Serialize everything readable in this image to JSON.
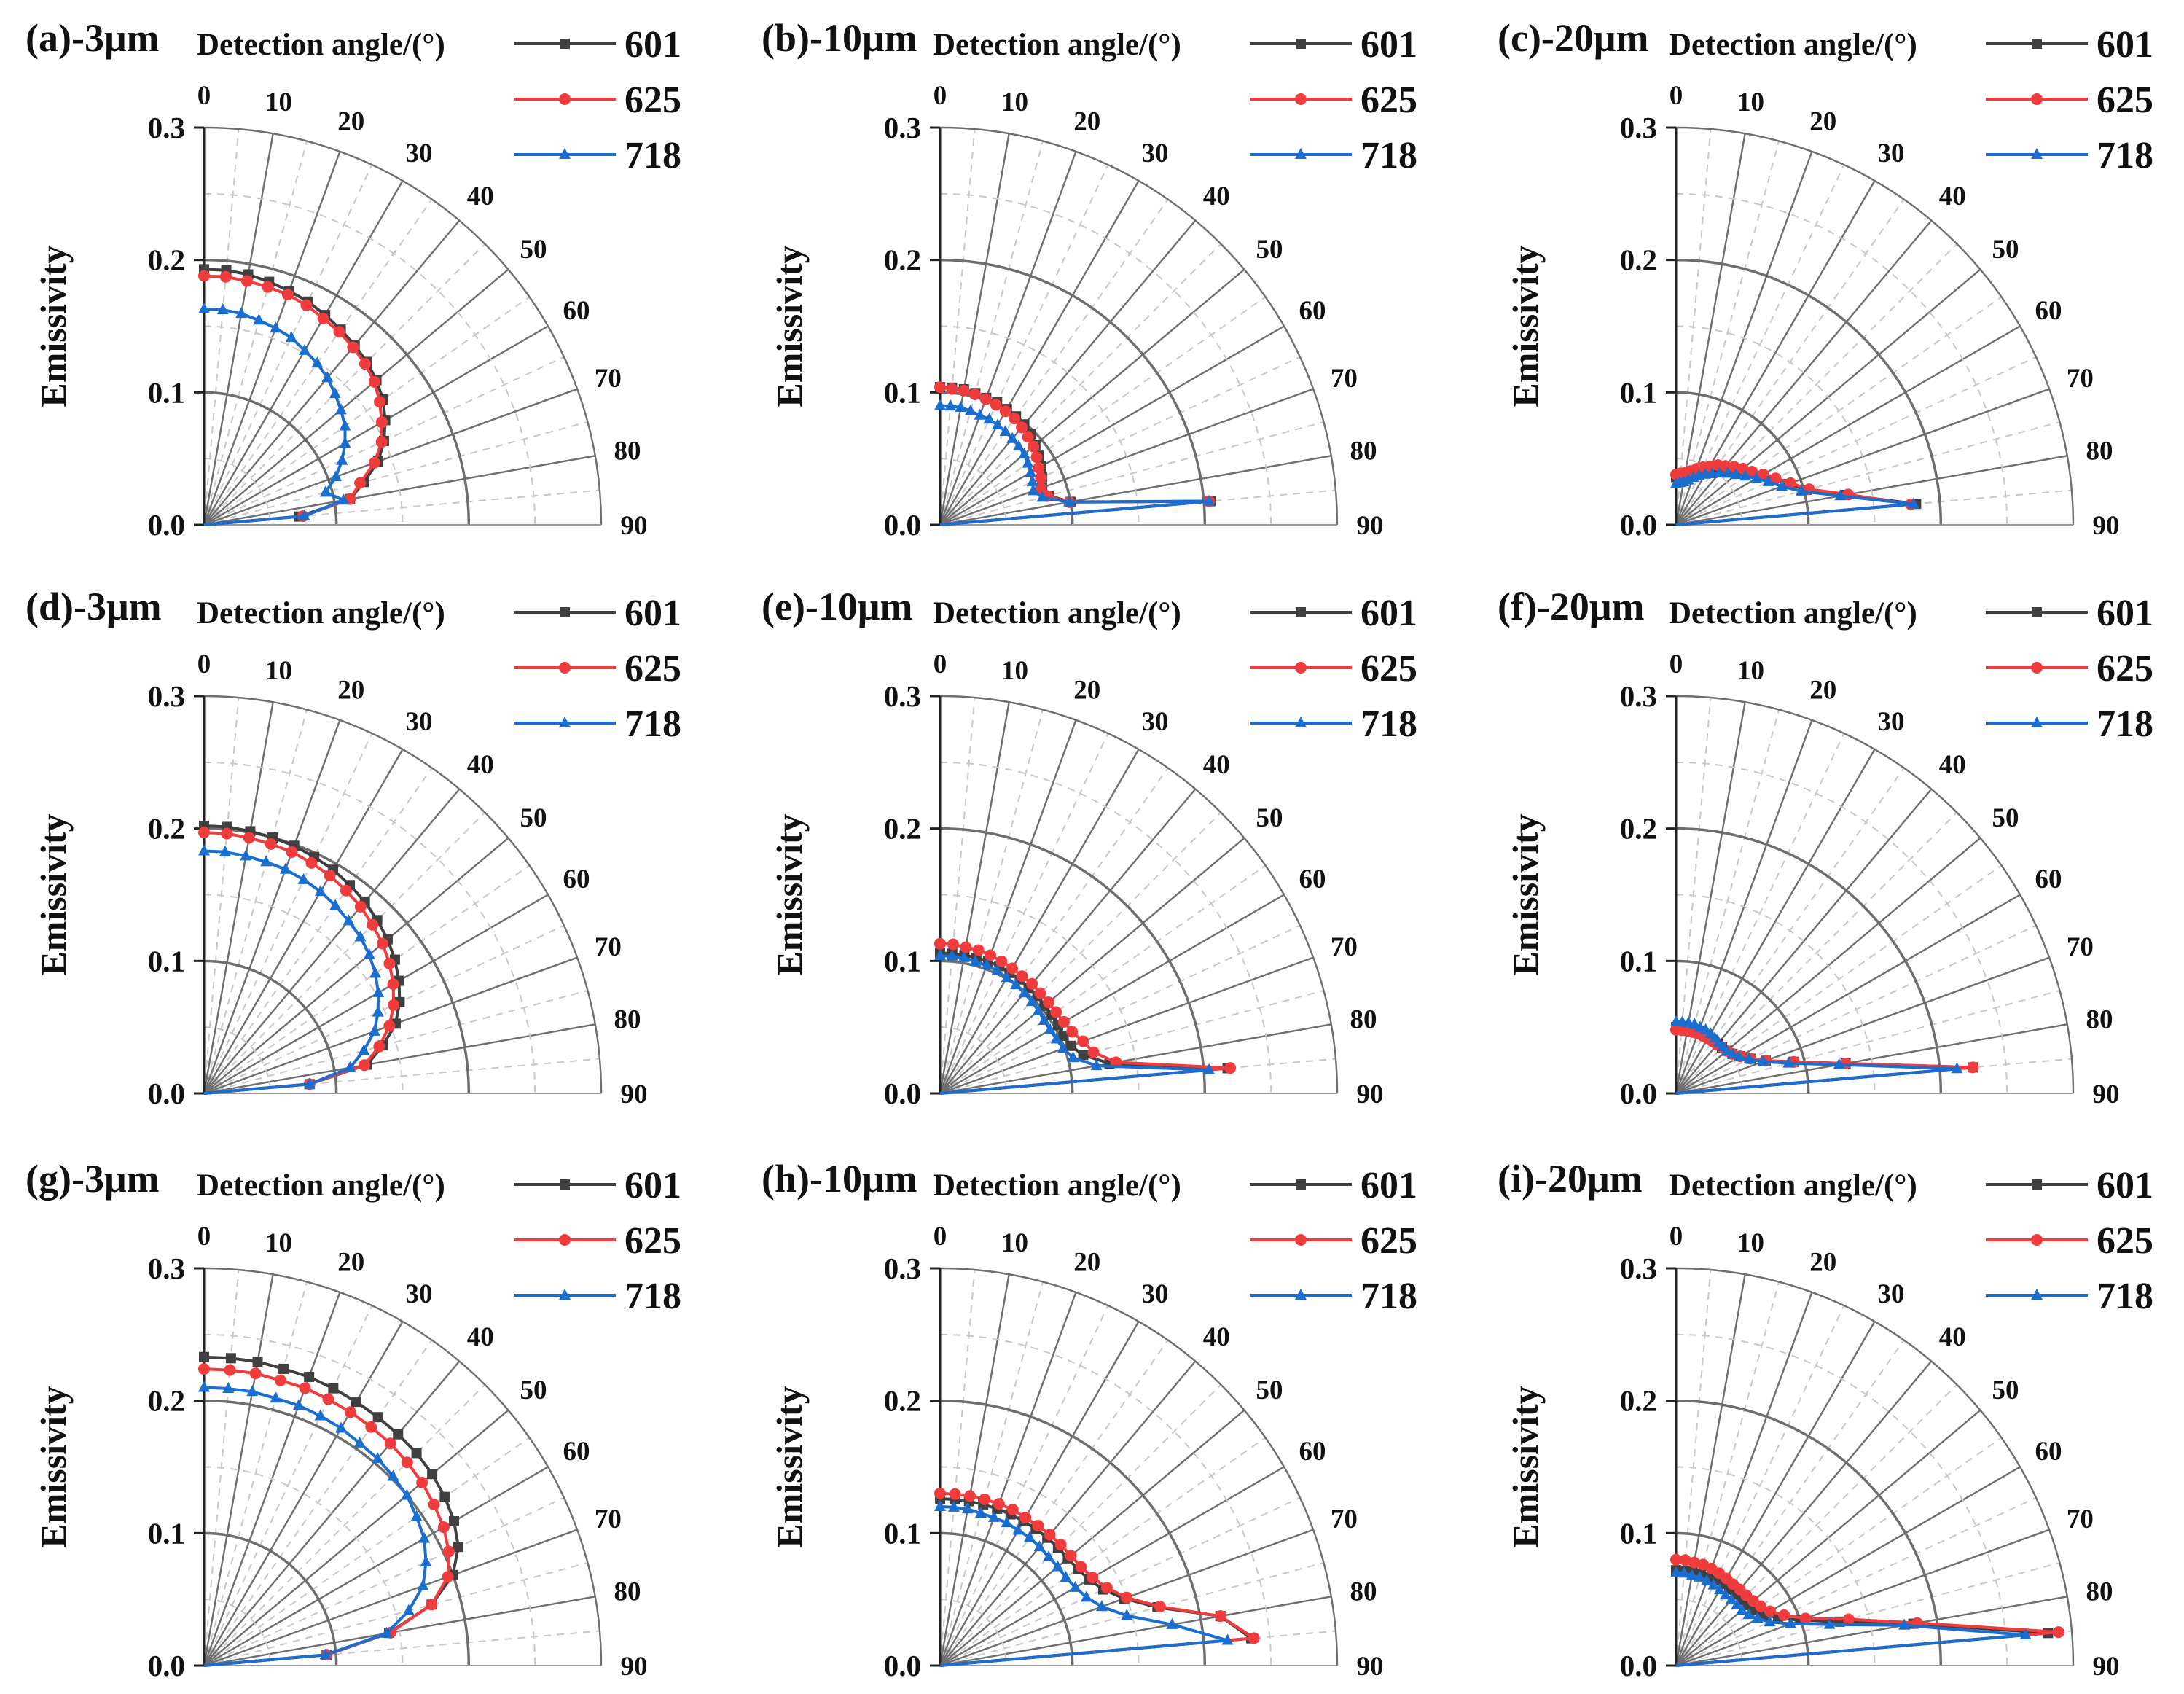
{
  "figure": {
    "y_label": "Emissivity",
    "angle_axis_title": "Detection angle/(°)",
    "radial_ticks": [
      "0.0",
      "0.1",
      "0.2",
      "0.3"
    ],
    "angle_ticks": [
      "0",
      "10",
      "20",
      "30",
      "40",
      "50",
      "60",
      "70",
      "80",
      "90"
    ],
    "legend": [
      {
        "name": "601",
        "color": "#404040",
        "marker": "square"
      },
      {
        "name": "625",
        "color": "#f03c3c",
        "marker": "circle"
      },
      {
        "name": "718",
        "color": "#1a6ed0",
        "marker": "triangle"
      }
    ]
  },
  "chart_data": [
    {
      "type": "polar-line",
      "title": "(a)-3μm",
      "xlabel": "Detection angle/(°)",
      "ylabel": "Emissivity",
      "angle_range": [
        0,
        90
      ],
      "radial_range": [
        0,
        0.3
      ],
      "angles": [
        0,
        5,
        10,
        15,
        20,
        25,
        30,
        35,
        40,
        45,
        50,
        55,
        60,
        65,
        70,
        75,
        80,
        85,
        90
      ],
      "series": [
        {
          "name": "601",
          "values": [
            0.193,
            0.193,
            0.192,
            0.19,
            0.188,
            0.186,
            0.183,
            0.18,
            0.177,
            0.174,
            0.17,
            0.165,
            0.158,
            0.15,
            0.14,
            0.125,
            0.112,
            0.072,
            0.0
          ]
        },
        {
          "name": "625",
          "values": [
            0.188,
            0.188,
            0.187,
            0.186,
            0.185,
            0.183,
            0.18,
            0.178,
            0.175,
            0.172,
            0.168,
            0.162,
            0.155,
            0.148,
            0.137,
            0.122,
            0.112,
            0.075,
            0.0
          ]
        },
        {
          "name": "718",
          "values": [
            0.163,
            0.163,
            0.162,
            0.16,
            0.158,
            0.156,
            0.152,
            0.149,
            0.145,
            0.14,
            0.135,
            0.13,
            0.123,
            0.115,
            0.106,
            0.095,
            0.107,
            0.076,
            0.0
          ]
        }
      ]
    },
    {
      "type": "polar-line",
      "title": "(b)-10μm",
      "xlabel": "Detection angle/(°)",
      "ylabel": "Emissivity",
      "angle_range": [
        0,
        90
      ],
      "radial_range": [
        0,
        0.3
      ],
      "angles": [
        0,
        5,
        10,
        15,
        20,
        25,
        30,
        35,
        40,
        45,
        50,
        55,
        60,
        65,
        70,
        75,
        80,
        85,
        90
      ],
      "series": [
        {
          "name": "601",
          "values": [
            0.104,
            0.104,
            0.104,
            0.103,
            0.102,
            0.102,
            0.101,
            0.1,
            0.099,
            0.097,
            0.094,
            0.091,
            0.088,
            0.085,
            0.082,
            0.085,
            0.1,
            0.205,
            0.0
          ]
        },
        {
          "name": "625",
          "values": [
            0.104,
            0.103,
            0.103,
            0.102,
            0.101,
            0.1,
            0.099,
            0.098,
            0.096,
            0.094,
            0.092,
            0.089,
            0.086,
            0.084,
            0.081,
            0.084,
            0.099,
            0.204,
            0.0
          ]
        },
        {
          "name": "718",
          "values": [
            0.09,
            0.09,
            0.09,
            0.089,
            0.088,
            0.088,
            0.087,
            0.086,
            0.085,
            0.084,
            0.083,
            0.081,
            0.079,
            0.077,
            0.075,
            0.08,
            0.099,
            0.204,
            0.0
          ]
        }
      ]
    },
    {
      "type": "polar-line",
      "title": "(c)-20μm",
      "xlabel": "Detection angle/(°)",
      "ylabel": "Emissivity",
      "angle_range": [
        0,
        90
      ],
      "radial_range": [
        0,
        0.3
      ],
      "angles": [
        0,
        5,
        10,
        15,
        20,
        25,
        30,
        35,
        40,
        45,
        50,
        55,
        60,
        65,
        70,
        75,
        80,
        85,
        90
      ],
      "series": [
        {
          "name": "601",
          "values": [
            0.036,
            0.037,
            0.038,
            0.04,
            0.043,
            0.046,
            0.049,
            0.053,
            0.056,
            0.06,
            0.064,
            0.068,
            0.074,
            0.081,
            0.09,
            0.102,
            0.13,
            0.182,
            0.0
          ]
        },
        {
          "name": "625",
          "values": [
            0.038,
            0.039,
            0.04,
            0.042,
            0.045,
            0.048,
            0.051,
            0.055,
            0.058,
            0.062,
            0.066,
            0.07,
            0.076,
            0.083,
            0.092,
            0.104,
            0.132,
            0.178,
            0.0
          ]
        },
        {
          "name": "718",
          "values": [
            0.031,
            0.032,
            0.033,
            0.035,
            0.038,
            0.041,
            0.044,
            0.047,
            0.051,
            0.055,
            0.059,
            0.064,
            0.07,
            0.077,
            0.085,
            0.098,
            0.126,
            0.18,
            0.0
          ]
        }
      ]
    },
    {
      "type": "polar-line",
      "title": "(d)-3μm",
      "xlabel": "Detection angle/(°)",
      "ylabel": "Emissivity",
      "angle_range": [
        0,
        90
      ],
      "radial_range": [
        0,
        0.3
      ],
      "angles": [
        0,
        5,
        10,
        15,
        20,
        25,
        30,
        35,
        40,
        45,
        50,
        55,
        60,
        65,
        70,
        75,
        80,
        85,
        90
      ],
      "series": [
        {
          "name": "601",
          "values": [
            0.202,
            0.202,
            0.201,
            0.2,
            0.199,
            0.197,
            0.195,
            0.192,
            0.189,
            0.185,
            0.181,
            0.176,
            0.17,
            0.163,
            0.154,
            0.14,
            0.125,
            0.08,
            0.0
          ]
        },
        {
          "name": "625",
          "values": [
            0.197,
            0.197,
            0.196,
            0.195,
            0.194,
            0.192,
            0.19,
            0.187,
            0.184,
            0.18,
            0.176,
            0.171,
            0.165,
            0.158,
            0.149,
            0.137,
            0.123,
            0.08,
            0.0
          ]
        },
        {
          "name": "718",
          "values": [
            0.183,
            0.183,
            0.182,
            0.181,
            0.18,
            0.178,
            0.176,
            0.173,
            0.17,
            0.167,
            0.163,
            0.158,
            0.152,
            0.145,
            0.137,
            0.125,
            0.112,
            0.08,
            0.0
          ]
        }
      ]
    },
    {
      "type": "polar-line",
      "title": "(e)-10μm",
      "xlabel": "Detection angle/(°)",
      "ylabel": "Emissivity",
      "angle_range": [
        0,
        90
      ],
      "radial_range": [
        0,
        0.3
      ],
      "angles": [
        0,
        5,
        10,
        15,
        20,
        25,
        30,
        35,
        40,
        45,
        50,
        55,
        60,
        65,
        70,
        75,
        80,
        85,
        90
      ],
      "series": [
        {
          "name": "601",
          "values": [
            0.106,
            0.106,
            0.106,
            0.106,
            0.106,
            0.106,
            0.105,
            0.105,
            0.104,
            0.104,
            0.103,
            0.103,
            0.103,
            0.103,
            0.105,
            0.112,
            0.13,
            0.218,
            0.0
          ]
        },
        {
          "name": "625",
          "values": [
            0.113,
            0.113,
            0.112,
            0.112,
            0.111,
            0.11,
            0.109,
            0.108,
            0.108,
            0.107,
            0.107,
            0.107,
            0.108,
            0.11,
            0.115,
            0.12,
            0.135,
            0.22,
            0.0
          ]
        },
        {
          "name": "718",
          "values": [
            0.104,
            0.104,
            0.104,
            0.103,
            0.103,
            0.102,
            0.101,
            0.1,
            0.099,
            0.098,
            0.097,
            0.096,
            0.096,
            0.097,
            0.099,
            0.104,
            0.12,
            0.204,
            0.0
          ]
        }
      ]
    },
    {
      "type": "polar-line",
      "title": "(f)-20μm",
      "xlabel": "Detection angle/(°)",
      "ylabel": "Emissivity",
      "angle_range": [
        0,
        90
      ],
      "radial_range": [
        0,
        0.3
      ],
      "angles": [
        0,
        5,
        10,
        15,
        20,
        25,
        30,
        35,
        40,
        45,
        50,
        55,
        60,
        65,
        70,
        75,
        80,
        85,
        90
      ],
      "series": [
        {
          "name": "601",
          "values": [
            0.05,
            0.05,
            0.05,
            0.05,
            0.05,
            0.049,
            0.049,
            0.049,
            0.049,
            0.049,
            0.05,
            0.052,
            0.056,
            0.062,
            0.072,
            0.092,
            0.13,
            0.225,
            0.0
          ]
        },
        {
          "name": "625",
          "values": [
            0.048,
            0.048,
            0.048,
            0.048,
            0.048,
            0.048,
            0.048,
            0.048,
            0.048,
            0.049,
            0.05,
            0.052,
            0.056,
            0.062,
            0.072,
            0.092,
            0.13,
            0.225,
            0.0
          ]
        },
        {
          "name": "718",
          "values": [
            0.054,
            0.054,
            0.054,
            0.054,
            0.053,
            0.053,
            0.052,
            0.051,
            0.05,
            0.05,
            0.05,
            0.052,
            0.055,
            0.061,
            0.07,
            0.088,
            0.125,
            0.213,
            0.0
          ]
        }
      ]
    },
    {
      "type": "polar-line",
      "title": "(g)-3μm",
      "xlabel": "Detection angle/(°)",
      "ylabel": "Emissivity",
      "angle_range": [
        0,
        90
      ],
      "radial_range": [
        0,
        0.3
      ],
      "angles": [
        0,
        5,
        10,
        15,
        20,
        25,
        30,
        35,
        40,
        45,
        50,
        55,
        60,
        65,
        70,
        75,
        80,
        85,
        90
      ],
      "series": [
        {
          "name": "601",
          "values": [
            0.233,
            0.233,
            0.233,
            0.232,
            0.232,
            0.231,
            0.23,
            0.229,
            0.228,
            0.227,
            0.225,
            0.222,
            0.218,
            0.212,
            0.2,
            0.178,
            0.142,
            0.093,
            0.0
          ]
        },
        {
          "name": "625",
          "values": [
            0.224,
            0.224,
            0.224,
            0.223,
            0.223,
            0.222,
            0.221,
            0.22,
            0.219,
            0.217,
            0.215,
            0.212,
            0.209,
            0.204,
            0.196,
            0.178,
            0.143,
            0.093,
            0.0
          ]
        },
        {
          "name": "718",
          "values": [
            0.21,
            0.21,
            0.21,
            0.209,
            0.209,
            0.208,
            0.207,
            0.205,
            0.204,
            0.202,
            0.2,
            0.196,
            0.192,
            0.185,
            0.176,
            0.16,
            0.14,
            0.092,
            0.0
          ]
        }
      ]
    },
    {
      "type": "polar-line",
      "title": "(h)-10μm",
      "xlabel": "Detection angle/(°)",
      "ylabel": "Emissivity",
      "angle_range": [
        0,
        90
      ],
      "radial_range": [
        0,
        0.3
      ],
      "angles": [
        0,
        5,
        10,
        15,
        20,
        25,
        30,
        35,
        40,
        45,
        50,
        55,
        60,
        65,
        70,
        75,
        80,
        85,
        90
      ],
      "series": [
        {
          "name": "601",
          "values": [
            0.126,
            0.126,
            0.126,
            0.126,
            0.126,
            0.126,
            0.126,
            0.126,
            0.126,
            0.126,
            0.126,
            0.127,
            0.13,
            0.136,
            0.148,
            0.17,
            0.215,
            0.236,
            0.0
          ]
        },
        {
          "name": "625",
          "values": [
            0.13,
            0.13,
            0.13,
            0.13,
            0.13,
            0.13,
            0.129,
            0.129,
            0.129,
            0.129,
            0.129,
            0.13,
            0.133,
            0.139,
            0.15,
            0.172,
            0.215,
            0.238,
            0.0
          ]
        },
        {
          "name": "718",
          "values": [
            0.12,
            0.12,
            0.12,
            0.119,
            0.119,
            0.119,
            0.118,
            0.118,
            0.117,
            0.116,
            0.116,
            0.116,
            0.118,
            0.122,
            0.13,
            0.146,
            0.178,
            0.218,
            0.0
          ]
        }
      ]
    },
    {
      "type": "polar-line",
      "title": "(i)-20μm",
      "xlabel": "Detection angle/(°)",
      "ylabel": "Emissivity",
      "angle_range": [
        0,
        90
      ],
      "radial_range": [
        0,
        0.3
      ],
      "angles": [
        0,
        5,
        10,
        15,
        20,
        25,
        30,
        35,
        40,
        45,
        50,
        55,
        60,
        65,
        70,
        75,
        80,
        85,
        90
      ],
      "series": [
        {
          "name": "601",
          "values": [
            0.072,
            0.072,
            0.072,
            0.072,
            0.071,
            0.071,
            0.071,
            0.07,
            0.07,
            0.07,
            0.071,
            0.073,
            0.077,
            0.085,
            0.1,
            0.128,
            0.182,
            0.282,
            0.0
          ]
        },
        {
          "name": "625",
          "values": [
            0.08,
            0.08,
            0.079,
            0.079,
            0.078,
            0.077,
            0.076,
            0.075,
            0.075,
            0.075,
            0.076,
            0.078,
            0.082,
            0.09,
            0.104,
            0.135,
            0.185,
            0.29,
            0.0
          ]
        },
        {
          "name": "718",
          "values": [
            0.07,
            0.07,
            0.069,
            0.069,
            0.068,
            0.067,
            0.066,
            0.065,
            0.065,
            0.065,
            0.065,
            0.067,
            0.071,
            0.078,
            0.092,
            0.12,
            0.175,
            0.265,
            0.0
          ]
        }
      ]
    }
  ]
}
